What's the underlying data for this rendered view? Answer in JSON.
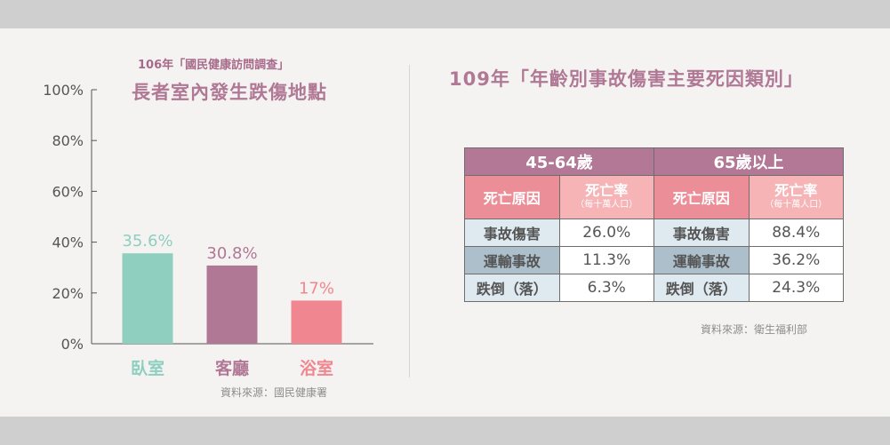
{
  "left": {
    "subtitle": "106年「國民健康訪問調查」",
    "title": "長者室內發生跌傷地點",
    "source": "資料來源：國民健康署"
  },
  "chart_data": {
    "type": "bar",
    "categories": [
      "臥室",
      "客廳",
      "浴室"
    ],
    "values": [
      35.6,
      30.8,
      17
    ],
    "value_labels": [
      "35.6%",
      "30.8%",
      "17%"
    ],
    "yticks": [
      "0%",
      "20%",
      "40%",
      "60%",
      "80%",
      "100%"
    ],
    "ylim": [
      0,
      100
    ],
    "colors": [
      "#8ecfc0",
      "#b07895",
      "#f0868f"
    ],
    "grid": false
  },
  "right": {
    "title": "109年「年齡別事故傷害主要死因類別」",
    "source": "資料來源：衛生福利部",
    "table": {
      "groups": [
        "45-64歲",
        "65歲以上"
      ],
      "cause_header": "死亡原因",
      "rate_header": "死亡率",
      "rate_subheader": "（每十萬人口）",
      "rows": [
        {
          "cause": "事故傷害",
          "g1": "26.0%",
          "g2": "88.4%"
        },
        {
          "cause": "運輸事故",
          "g1": "11.3%",
          "g2": "36.2%"
        },
        {
          "cause": "跌倒（落）",
          "g1": "6.3%",
          "g2": "24.3%"
        }
      ]
    }
  }
}
